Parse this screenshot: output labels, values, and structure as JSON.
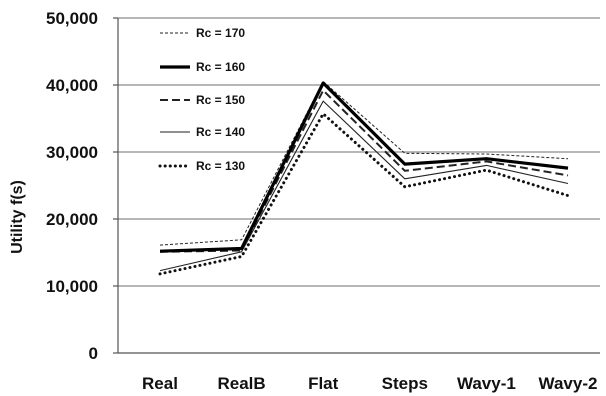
{
  "chart_data": {
    "type": "line",
    "title": "",
    "xlabel": "",
    "ylabel": "Utility f(s)",
    "ylim": [
      0,
      50000
    ],
    "yticks": [
      "0",
      "10,000",
      "20,000",
      "30,000",
      "40,000",
      "50,000"
    ],
    "grid": true,
    "legend_position": "top-left",
    "categories": [
      "Real",
      "RealB",
      "Flat",
      "Steps",
      "Wavy-1",
      "Wavy-2"
    ],
    "series": [
      {
        "name": "Rc = 170",
        "values": [
          16100,
          16900,
          40500,
          29800,
          29700,
          29000
        ],
        "style": "dashed-thin",
        "color": "#222222"
      },
      {
        "name": "Rc = 160",
        "values": [
          15200,
          15600,
          40300,
          28200,
          29000,
          27600
        ],
        "style": "solid-thick",
        "color": "#000000"
      },
      {
        "name": "Rc = 150",
        "values": [
          15100,
          15300,
          39200,
          27200,
          28600,
          26500
        ],
        "style": "dashed",
        "color": "#222222"
      },
      {
        "name": "Rc = 140",
        "values": [
          12300,
          15100,
          37600,
          26000,
          28000,
          25300
        ],
        "style": "solid-thin",
        "color": "#222222"
      },
      {
        "name": "Rc = 130",
        "values": [
          11800,
          14400,
          35700,
          24800,
          27300,
          23500
        ],
        "style": "dotted",
        "color": "#111111"
      }
    ]
  }
}
